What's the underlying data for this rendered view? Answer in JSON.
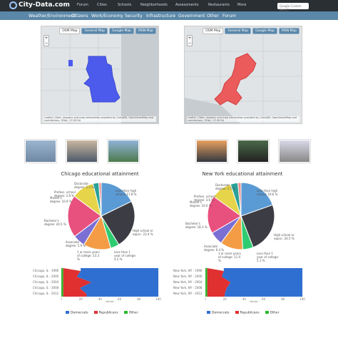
{
  "top": {
    "logo": "City-Data.com",
    "links": [
      "Forum",
      "Cities",
      "Schools",
      "Neighborhoods",
      "Assessments",
      "Restaurants",
      "More"
    ],
    "search_placeholder": "Google Custom Search"
  },
  "nav": [
    "Weather/Environment",
    "Citizens",
    "Work/Economy",
    "Security",
    "Infrastructure",
    "Government",
    "Other",
    "Forum"
  ],
  "map_tabs": [
    "OSM Map",
    "General Map",
    "Google Map",
    "MSN Map"
  ],
  "map_attr": "Leaflet | Data, imagery and map information provided by CartoDB, OpenStreetMap and contributors, ODbL, CC-BY-SA",
  "cities": [
    {
      "title": "Chicago educational attainment",
      "pie": [
        {
          "label": "Less than high school: 17.8 %",
          "v": 17.8,
          "c": "#5b9bd5"
        },
        {
          "label": "High school or equiv.: 23.4 %",
          "v": 23.4,
          "c": "#3c3c44"
        },
        {
          "label": "Less than 1 year of college: 4.2 %",
          "v": 4.2,
          "c": "#2ecc71"
        },
        {
          "label": "1 or more years of college: 13.3 %",
          "v": 13.3,
          "c": "#f39c45"
        },
        {
          "label": "Associate degree: 5.9 %",
          "v": 5.9,
          "c": "#7b6fd4"
        },
        {
          "label": "Bachelor's degree: 20.5 %",
          "v": 20.5,
          "c": "#e8507e"
        },
        {
          "label": "Master's degree: 10.9 %",
          "v": 10.9,
          "c": "#e6d44a"
        },
        {
          "label": "Profess. school degree: 2.8 %",
          "v": 2.8,
          "c": "#2aa198"
        },
        {
          "label": "Doctorate degree: 1.2 %",
          "v": 1.2,
          "c": "#f08c8c"
        }
      ],
      "years": [
        "Chicago, IL - 1996",
        "Chicago, IL - 2000",
        "Chicago, IL - 2004",
        "Chicago, IL - 2008",
        "Chicago, IL - 2012"
      ],
      "dem": [
        80,
        84,
        70,
        82,
        75
      ],
      "rep": [
        18,
        14,
        29,
        17,
        24
      ]
    },
    {
      "title": "New York educational attainment",
      "pie": [
        {
          "label": "Less than high school: 19.6 %",
          "v": 19.6,
          "c": "#5b9bd5"
        },
        {
          "label": "High school or equiv.: 24.5 %",
          "v": 24.5,
          "c": "#3c3c44"
        },
        {
          "label": "Less than 1 year of college: 5.1 %",
          "v": 5.1,
          "c": "#2ecc71"
        },
        {
          "label": "1 or more years of college: 11.0 %",
          "v": 11.0,
          "c": "#f39c45"
        },
        {
          "label": "Associate degree: 6.4 %",
          "v": 6.4,
          "c": "#7b6fd4"
        },
        {
          "label": "Bachelor's degree: 18.3 %",
          "v": 18.3,
          "c": "#e8507e"
        },
        {
          "label": "Master's degree: 10.0 %",
          "v": 10.0,
          "c": "#e6d44a"
        },
        {
          "label": "Profess. school degree: 3.6 %",
          "v": 3.6,
          "c": "#2aa198"
        },
        {
          "label": "Doctorate degree: 1.5 %",
          "v": 1.5,
          "c": "#f08c8c"
        }
      ],
      "years": [
        "New York, NY - 1996",
        "New York, NY - 2000",
        "New York, NY - 2004",
        "New York, NY - 2008",
        "New York, NY - 2012"
      ],
      "dem": [
        77,
        79,
        75,
        79,
        81
      ],
      "rep": [
        17,
        15,
        24,
        20,
        18
      ]
    }
  ],
  "axis_ticks": [
    "0",
    "20",
    "40",
    "60",
    "80",
    "100"
  ],
  "axis_title": "Values",
  "legend": [
    {
      "label": "Democrats",
      "c": "#2f6fd1"
    },
    {
      "label": "Republicans",
      "c": "#e03030"
    },
    {
      "label": "Other",
      "c": "#2db82d"
    }
  ]
}
